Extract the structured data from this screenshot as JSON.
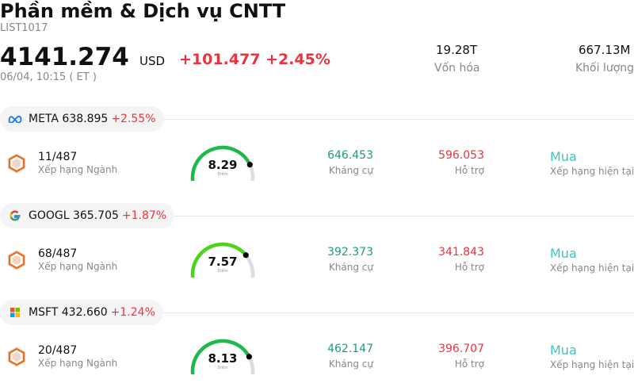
{
  "header": {
    "title": "Phần mềm & Dịch vụ CNTT",
    "code": "LIST1017",
    "price": "4141.274",
    "currency": "USD",
    "change": "+101.477 +2.45%",
    "time": "06/04, 10:15  ( ET )",
    "market_cap_value": "19.28T",
    "market_cap_label": "Vốn hóa",
    "volume_value": "667.13M",
    "volume_label": "Khối lượng"
  },
  "colors": {
    "up": "#e8343f",
    "resistance": "#1a9b7f",
    "rating": "#3fc4bd",
    "gauge_track": "#dcdce4"
  },
  "stocks": [
    {
      "logo": "meta-logo-icon",
      "symbol_price": "META 638.895",
      "change_pct": "+2.55%",
      "rank": "11/487",
      "rank_label": "Xếp hạng Ngành",
      "score": "8.29",
      "score_value": 8.29,
      "score_label": "Điểm",
      "resistance": "646.453",
      "resistance_label": "Kháng cự",
      "support": "596.053",
      "support_label": "Hỗ trợ",
      "rating": "Mua",
      "rating_label": "Xếp hạng hiện tại"
    },
    {
      "logo": "google-logo-icon",
      "symbol_price": "GOOGL 365.705",
      "change_pct": "+1.87%",
      "rank": "68/487",
      "rank_label": "Xếp hạng Ngành",
      "score": "7.57",
      "score_value": 7.57,
      "score_label": "Điểm",
      "resistance": "392.373",
      "resistance_label": "Kháng cự",
      "support": "341.843",
      "support_label": "Hỗ trợ",
      "rating": "Mua",
      "rating_label": "Xếp hạng hiện tại"
    },
    {
      "logo": "microsoft-logo-icon",
      "symbol_price": "MSFT 432.660",
      "change_pct": "+1.24%",
      "rank": "20/487",
      "rank_label": "Xếp hạng Ngành",
      "score": "8.13",
      "score_value": 8.13,
      "score_label": "Điểm",
      "resistance": "462.147",
      "resistance_label": "Kháng cự",
      "support": "396.707",
      "support_label": "Hỗ trợ",
      "rating": "Mua",
      "rating_label": "Xếp hạng hiện tại"
    }
  ]
}
